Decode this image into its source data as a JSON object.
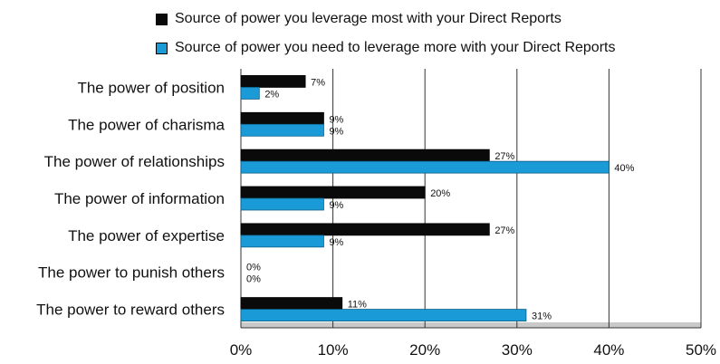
{
  "chart_data": {
    "type": "bar",
    "orientation": "horizontal",
    "categories": [
      "The power of position",
      "The power of charisma",
      "The power of relationships",
      "The power of information",
      "The power of expertise",
      "The power to punish others",
      "The power to reward others"
    ],
    "series": [
      {
        "name": "Source of power you leverage most with your Direct Reports",
        "values": [
          7,
          9,
          27,
          20,
          27,
          0,
          11
        ],
        "labels": [
          "7%",
          "9%",
          "27%",
          "20%",
          "27%",
          "0%",
          "11%"
        ],
        "color": "#0a0a0a"
      },
      {
        "name": "Source of power you need to leverage more with your Direct Reports",
        "values": [
          2,
          9,
          40,
          9,
          9,
          0,
          31
        ],
        "labels": [
          "2%",
          "9%",
          "40%",
          "9%",
          "9%",
          "0%",
          "31%"
        ],
        "color": "#1a9bd7"
      }
    ],
    "xlim": [
      0,
      50
    ],
    "xticks": [
      "0%",
      "10%",
      "20%",
      "30%",
      "40%",
      "50%"
    ],
    "grid": true,
    "legend_position": "top"
  }
}
